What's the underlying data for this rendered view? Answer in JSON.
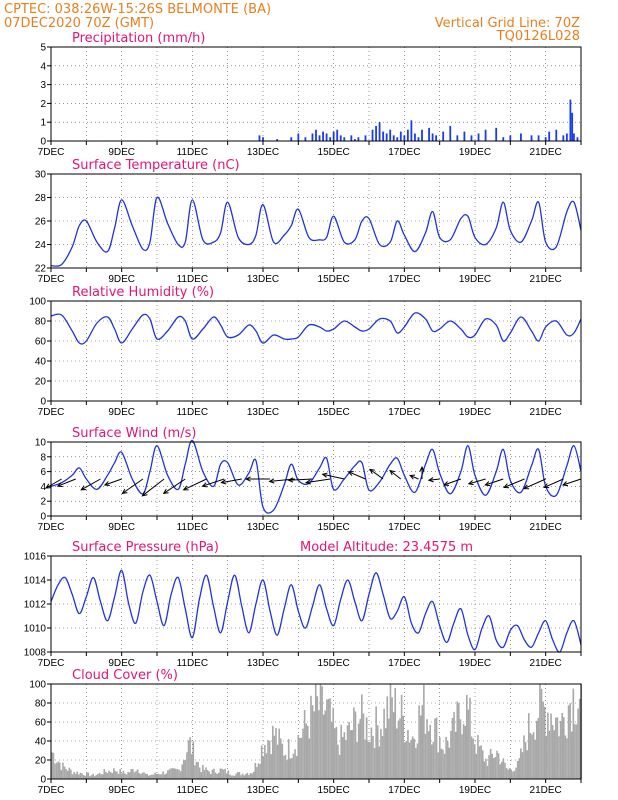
{
  "header": {
    "line1": "CPTEC:  038:26W-15:26S  BELMONTE (BA)",
    "line2": "07DEC2020 70Z (GMT)",
    "grid_note": "Vertical Grid Line: 70Z",
    "code": "TQ0126L028"
  },
  "x_axis": {
    "start_day": 7,
    "end_day": 22,
    "tick_labels": [
      "7DEC",
      "9DEC",
      "11DEC",
      "13DEC",
      "15DEC",
      "17DEC",
      "19DEC",
      "21DEC"
    ]
  },
  "colors": {
    "line": "#2233dd",
    "bars": "#1a3cf0",
    "cloud": "#a8a8a8",
    "header": "#e87f1e",
    "title": "#e0157a"
  },
  "chart_data": [
    {
      "type": "bar",
      "title": "Precipitation (mm/h)",
      "ylim": [
        0,
        5
      ],
      "yticks": [
        0,
        1,
        2,
        3,
        4,
        5
      ],
      "x": [
        12.9,
        13.0,
        13.4,
        13.8,
        14.0,
        14.2,
        14.4,
        14.5,
        14.6,
        14.7,
        14.8,
        14.9,
        15.0,
        15.1,
        15.2,
        15.3,
        15.5,
        15.6,
        15.7,
        15.9,
        16.1,
        16.2,
        16.3,
        16.4,
        16.5,
        16.6,
        16.7,
        16.8,
        16.9,
        17.0,
        17.1,
        17.2,
        17.3,
        17.4,
        17.5,
        17.7,
        17.8,
        17.9,
        18.1,
        18.3,
        18.5,
        18.7,
        18.9,
        19.1,
        19.3,
        19.6,
        19.8,
        20.0,
        20.3,
        20.6,
        20.8,
        21.0,
        21.1,
        21.3,
        21.5,
        21.6,
        21.7,
        21.75,
        21.8,
        21.9
      ],
      "values": [
        0.3,
        0.2,
        0.1,
        0.2,
        0.4,
        0.2,
        0.4,
        0.6,
        0.3,
        0.5,
        0.4,
        0.2,
        0.5,
        0.6,
        0.3,
        0.2,
        0.3,
        0.1,
        0.2,
        0.3,
        0.6,
        0.8,
        1.0,
        0.5,
        0.4,
        0.6,
        0.3,
        0.2,
        0.5,
        0.3,
        0.6,
        1.1,
        0.4,
        0.2,
        0.6,
        0.7,
        0.4,
        0.3,
        0.5,
        0.8,
        0.3,
        0.5,
        0.3,
        0.4,
        0.6,
        0.7,
        0.2,
        0.3,
        0.4,
        0.3,
        0.3,
        0.2,
        0.5,
        0.6,
        0.3,
        0.4,
        2.2,
        1.5,
        0.4,
        0.2
      ]
    },
    {
      "type": "line",
      "title": "Surface Temperature (nC)",
      "ylim": [
        22,
        30
      ],
      "yticks": [
        22,
        24,
        26,
        28,
        30
      ],
      "x": [
        7.0,
        7.3,
        7.6,
        7.8,
        8.0,
        8.3,
        8.6,
        8.8,
        9.0,
        9.3,
        9.6,
        9.8,
        10.0,
        10.3,
        10.6,
        10.8,
        11.0,
        11.3,
        11.6,
        11.8,
        12.0,
        12.3,
        12.6,
        12.8,
        13.0,
        13.3,
        13.6,
        13.8,
        14.0,
        14.3,
        14.6,
        14.8,
        15.0,
        15.3,
        15.6,
        15.8,
        16.0,
        16.3,
        16.6,
        16.8,
        17.0,
        17.3,
        17.6,
        17.8,
        18.0,
        18.3,
        18.6,
        18.8,
        19.0,
        19.3,
        19.6,
        19.8,
        20.0,
        20.3,
        20.6,
        20.8,
        21.0,
        21.3,
        21.6,
        21.8,
        22.0
      ],
      "values": [
        22.2,
        22.3,
        23.8,
        25.6,
        26.0,
        24.2,
        23.4,
        25.4,
        27.8,
        25.6,
        23.6,
        24.2,
        28.0,
        25.8,
        24.0,
        24.2,
        27.8,
        24.4,
        24.2,
        25.0,
        27.6,
        24.6,
        24.0,
        24.8,
        27.4,
        24.2,
        24.8,
        25.6,
        27.0,
        24.6,
        24.4,
        24.6,
        26.4,
        24.2,
        24.4,
        26.0,
        26.2,
        24.0,
        24.2,
        26.0,
        24.8,
        23.4,
        25.0,
        26.8,
        24.6,
        24.4,
        26.2,
        26.4,
        24.6,
        24.0,
        25.4,
        27.6,
        25.2,
        24.2,
        26.0,
        27.6,
        24.2,
        23.8,
        26.8,
        27.6,
        25.2
      ]
    },
    {
      "type": "line",
      "title": "Relative Humidity (%)",
      "ylim": [
        0,
        100
      ],
      "yticks": [
        0,
        20,
        40,
        60,
        80,
        100
      ],
      "x": [
        7.0,
        7.3,
        7.6,
        7.8,
        8.0,
        8.3,
        8.6,
        8.8,
        9.0,
        9.3,
        9.6,
        9.8,
        10.0,
        10.3,
        10.6,
        10.8,
        11.0,
        11.3,
        11.6,
        11.8,
        12.0,
        12.3,
        12.6,
        12.8,
        13.0,
        13.3,
        13.6,
        13.8,
        14.0,
        14.3,
        14.6,
        14.8,
        15.0,
        15.3,
        15.6,
        15.8,
        16.0,
        16.3,
        16.6,
        16.8,
        17.0,
        17.3,
        17.6,
        17.8,
        18.0,
        18.3,
        18.6,
        18.8,
        19.0,
        19.3,
        19.6,
        19.8,
        20.0,
        20.3,
        20.6,
        20.8,
        21.0,
        21.3,
        21.6,
        21.8,
        22.0
      ],
      "values": [
        85,
        86,
        70,
        58,
        60,
        78,
        84,
        72,
        58,
        72,
        86,
        82,
        62,
        70,
        84,
        80,
        62,
        72,
        84,
        76,
        64,
        66,
        76,
        70,
        58,
        66,
        62,
        62,
        64,
        76,
        74,
        70,
        72,
        80,
        74,
        70,
        72,
        82,
        80,
        68,
        74,
        88,
        82,
        70,
        72,
        80,
        72,
        64,
        66,
        82,
        76,
        60,
        68,
        84,
        70,
        60,
        74,
        80,
        66,
        68,
        82
      ]
    },
    {
      "type": "line",
      "title": "Surface Wind (m/s)",
      "ylim": [
        0,
        10
      ],
      "yticks": [
        0,
        2,
        4,
        6,
        8,
        10
      ],
      "x": [
        7.0,
        7.3,
        7.6,
        7.8,
        8.0,
        8.3,
        8.6,
        8.8,
        9.0,
        9.3,
        9.6,
        9.8,
        10.0,
        10.3,
        10.6,
        10.8,
        11.0,
        11.3,
        11.6,
        11.8,
        12.0,
        12.3,
        12.6,
        12.8,
        13.0,
        13.3,
        13.6,
        13.8,
        14.0,
        14.3,
        14.6,
        14.8,
        15.0,
        15.3,
        15.6,
        15.8,
        16.0,
        16.3,
        16.6,
        16.8,
        17.0,
        17.3,
        17.6,
        17.8,
        18.0,
        18.3,
        18.6,
        18.8,
        19.0,
        19.3,
        19.6,
        19.8,
        20.0,
        20.3,
        20.6,
        20.8,
        21.0,
        21.3,
        21.6,
        21.8,
        22.0
      ],
      "values": [
        4.0,
        4.5,
        5.5,
        6.5,
        5.0,
        3.6,
        5.5,
        7.2,
        8.6,
        5.0,
        3.0,
        6.0,
        9.5,
        5.5,
        3.6,
        7.0,
        10.2,
        6.0,
        4.0,
        7.0,
        7.2,
        4.2,
        5.8,
        7.5,
        1.2,
        0.8,
        4.2,
        7.0,
        4.8,
        4.4,
        6.5,
        7.8,
        3.6,
        5.0,
        6.8,
        7.2,
        3.5,
        4.6,
        7.0,
        7.8,
        5.5,
        3.2,
        7.0,
        9.0,
        5.8,
        3.0,
        6.0,
        9.5,
        5.5,
        2.8,
        6.0,
        9.0,
        4.8,
        3.2,
        6.8,
        9.0,
        4.0,
        2.8,
        6.8,
        9.5,
        6.0
      ],
      "arrows": [
        {
          "day": 7.3,
          "u": 2.6,
          "v": 1.5
        },
        {
          "day": 7.7,
          "u": 3.0,
          "v": 1.2
        },
        {
          "day": 8.4,
          "u": 3.2,
          "v": 1.8
        },
        {
          "day": 9.0,
          "u": 2.8,
          "v": 1.0
        },
        {
          "day": 9.6,
          "u": 3.4,
          "v": 2.4
        },
        {
          "day": 10.2,
          "u": 3.6,
          "v": 2.8
        },
        {
          "day": 10.8,
          "u": 3.6,
          "v": 2.4
        },
        {
          "day": 11.4,
          "u": 3.8,
          "v": 1.8
        },
        {
          "day": 11.9,
          "u": 3.6,
          "v": 1.2
        },
        {
          "day": 12.4,
          "u": 3.4,
          "v": 0.6
        },
        {
          "day": 13.2,
          "u": 4.0,
          "v": 0.0
        },
        {
          "day": 13.9,
          "u": 4.2,
          "v": 0.4
        },
        {
          "day": 14.4,
          "u": 4.0,
          "v": 0.2
        },
        {
          "day": 14.9,
          "u": 4.0,
          "v": 0.6
        },
        {
          "day": 15.3,
          "u": 3.6,
          "v": -0.8
        },
        {
          "day": 15.9,
          "u": 2.8,
          "v": -1.2
        },
        {
          "day": 16.4,
          "u": 2.2,
          "v": -1.6
        },
        {
          "day": 16.9,
          "u": 1.8,
          "v": -1.4
        },
        {
          "day": 17.4,
          "u": 1.4,
          "v": -0.6
        },
        {
          "day": 17.5,
          "u": 0.0,
          "v": -2.0
        },
        {
          "day": 18.0,
          "u": 1.8,
          "v": 0.2
        },
        {
          "day": 18.6,
          "u": 2.8,
          "v": 1.0
        },
        {
          "day": 19.3,
          "u": 2.8,
          "v": 0.8
        },
        {
          "day": 19.8,
          "u": 3.0,
          "v": 1.0
        },
        {
          "day": 20.4,
          "u": 3.4,
          "v": 1.4
        },
        {
          "day": 21.0,
          "u": 3.6,
          "v": 1.6
        },
        {
          "day": 21.5,
          "u": 3.2,
          "v": 1.4
        },
        {
          "day": 22.0,
          "u": 3.0,
          "v": 1.0
        }
      ]
    },
    {
      "type": "line",
      "title": "Surface Pressure (hPa)",
      "subtitle": "Model Altitude: 23.4575 m",
      "ylim": [
        1008,
        1016
      ],
      "yticks": [
        1008,
        1010,
        1012,
        1014,
        1016
      ],
      "x": [
        7.0,
        7.2,
        7.4,
        7.6,
        7.8,
        8.0,
        8.2,
        8.4,
        8.6,
        8.8,
        9.0,
        9.2,
        9.4,
        9.6,
        9.8,
        10.0,
        10.2,
        10.4,
        10.6,
        10.8,
        11.0,
        11.2,
        11.4,
        11.6,
        11.8,
        12.0,
        12.2,
        12.4,
        12.6,
        12.8,
        13.0,
        13.2,
        13.4,
        13.6,
        13.8,
        14.0,
        14.2,
        14.4,
        14.6,
        14.8,
        15.0,
        15.2,
        15.4,
        15.6,
        15.8,
        16.0,
        16.2,
        16.4,
        16.6,
        16.8,
        17.0,
        17.2,
        17.4,
        17.6,
        17.8,
        18.0,
        18.2,
        18.4,
        18.6,
        18.8,
        19.0,
        19.2,
        19.4,
        19.6,
        19.8,
        20.0,
        20.2,
        20.4,
        20.6,
        20.8,
        21.0,
        21.2,
        21.4,
        21.6,
        21.8,
        22.0
      ],
      "values": [
        1012.2,
        1013.6,
        1014.2,
        1012.8,
        1011.2,
        1012.6,
        1014.2,
        1012.2,
        1010.6,
        1012.6,
        1014.8,
        1012.0,
        1010.4,
        1013.0,
        1014.4,
        1012.2,
        1010.2,
        1012.8,
        1014.2,
        1011.6,
        1009.2,
        1012.4,
        1014.4,
        1011.8,
        1009.6,
        1012.2,
        1014.4,
        1011.8,
        1009.6,
        1012.0,
        1014.0,
        1011.4,
        1009.4,
        1011.6,
        1013.6,
        1011.4,
        1010.0,
        1011.8,
        1013.6,
        1011.6,
        1010.2,
        1012.4,
        1014.0,
        1012.2,
        1010.6,
        1012.8,
        1014.6,
        1012.8,
        1010.8,
        1011.4,
        1012.6,
        1010.4,
        1009.6,
        1011.2,
        1012.2,
        1010.2,
        1008.8,
        1010.4,
        1011.6,
        1009.4,
        1008.2,
        1010.0,
        1011.0,
        1009.0,
        1008.4,
        1009.8,
        1010.2,
        1009.0,
        1008.4,
        1009.6,
        1010.6,
        1009.0,
        1008.0,
        1009.6,
        1010.6,
        1008.6
      ]
    },
    {
      "type": "area",
      "title": "Cloud Cover (%)",
      "ylim": [
        0,
        100
      ],
      "yticks": [
        0,
        20,
        40,
        60,
        80,
        100
      ],
      "x": [
        7.0,
        7.3,
        7.6,
        7.9,
        8.2,
        8.5,
        8.8,
        9.1,
        9.4,
        9.7,
        10.0,
        10.3,
        10.6,
        10.9,
        11.2,
        11.5,
        11.8,
        12.1,
        12.4,
        12.7,
        13.0,
        13.3,
        13.6,
        13.9,
        14.2,
        14.5,
        14.8,
        15.1,
        15.4,
        15.7,
        16.0,
        16.3,
        16.6,
        16.9,
        17.2,
        17.5,
        17.8,
        18.1,
        18.4,
        18.7,
        19.0,
        19.3,
        19.6,
        19.9,
        20.2,
        20.5,
        20.8,
        21.1,
        21.4,
        21.7,
        22.0
      ],
      "values": [
        30,
        14,
        8,
        6,
        4,
        8,
        10,
        6,
        12,
        4,
        6,
        8,
        10,
        40,
        12,
        8,
        10,
        6,
        6,
        8,
        40,
        50,
        30,
        40,
        60,
        80,
        75,
        40,
        50,
        70,
        55,
        60,
        85,
        70,
        45,
        80,
        60,
        35,
        55,
        85,
        40,
        20,
        30,
        10,
        15,
        55,
        80,
        75,
        60,
        90,
        95
      ]
    }
  ]
}
